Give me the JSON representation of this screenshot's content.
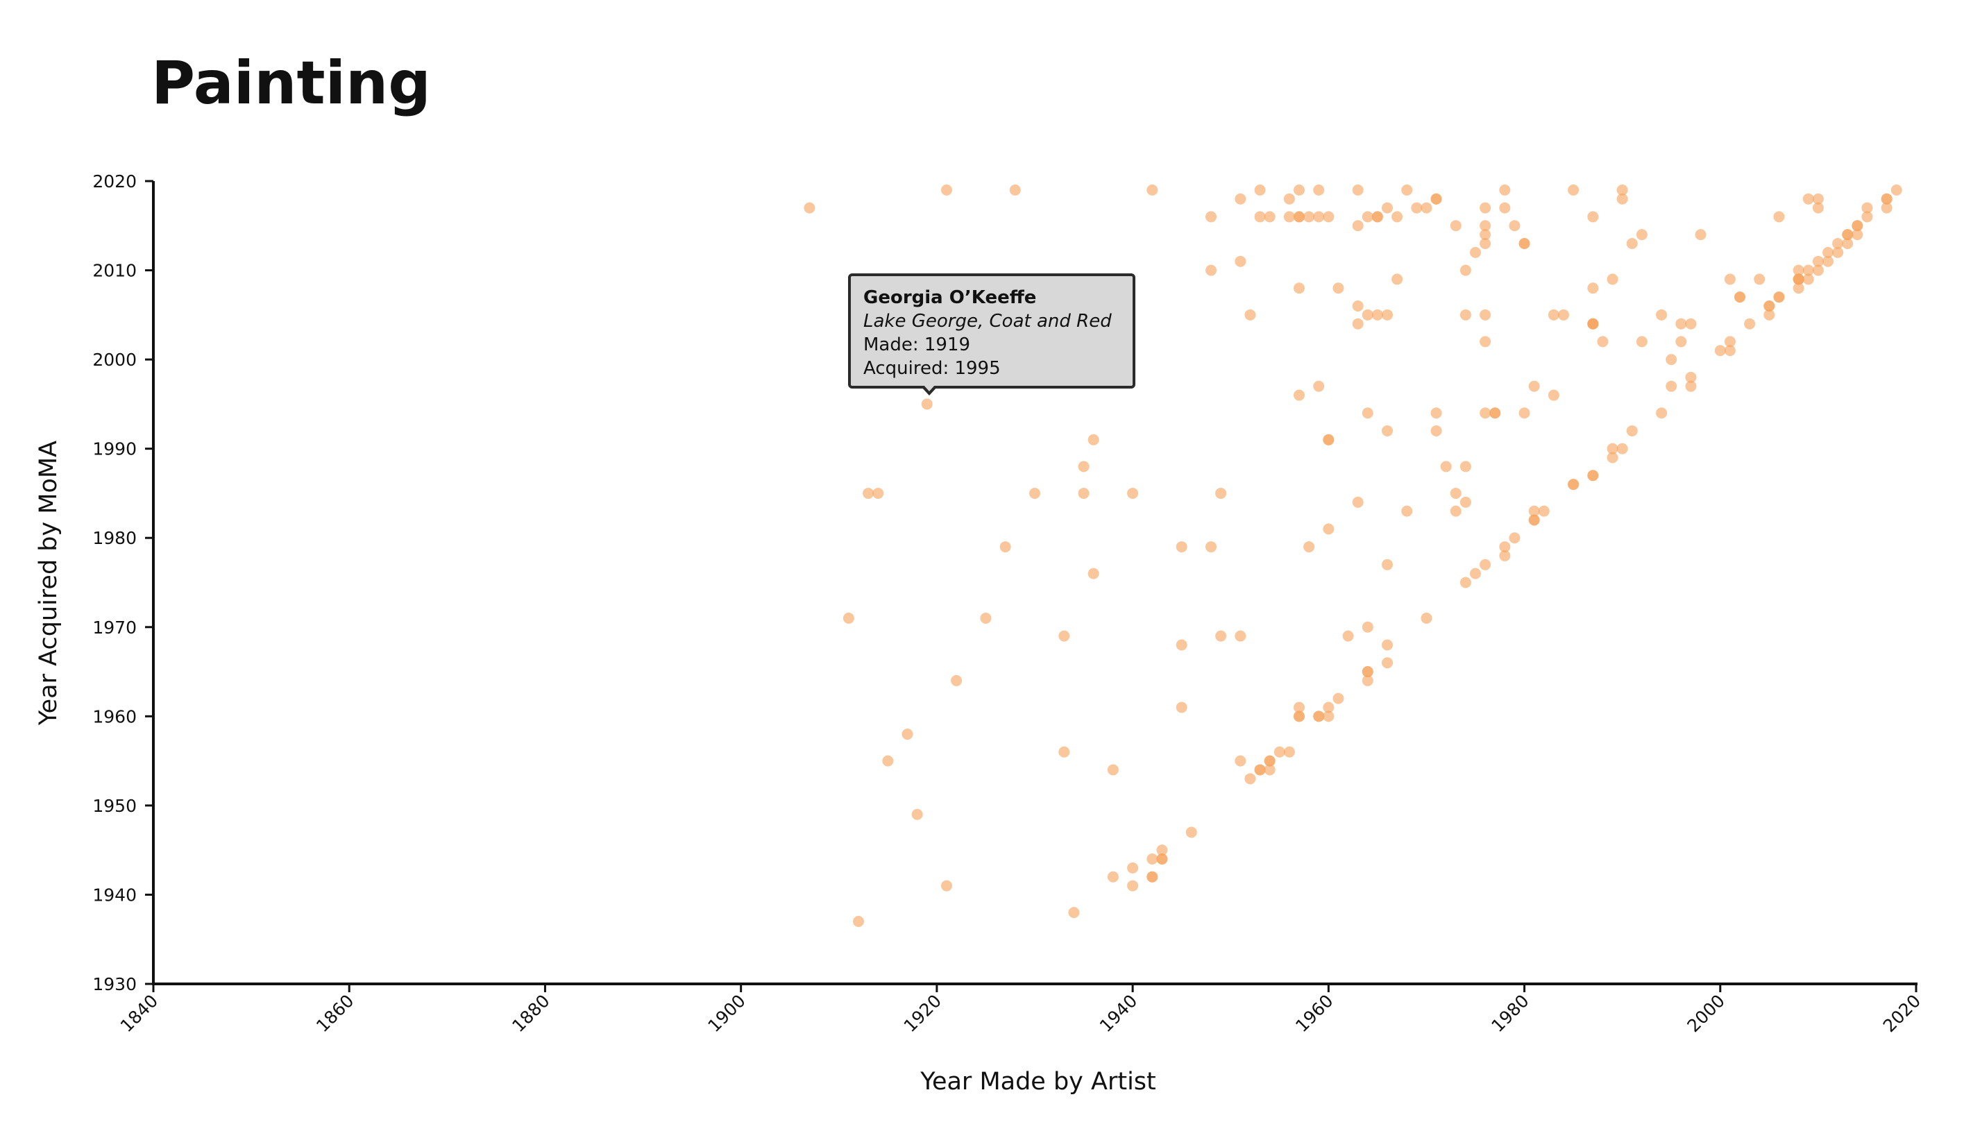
{
  "title": "Painting",
  "chart_data": {
    "type": "scatter",
    "title": "Painting",
    "xlabel": "Year Made by Artist",
    "ylabel": "Year Acquired by MoMA",
    "xlim": [
      1840,
      2020
    ],
    "ylim": [
      1930,
      2020
    ],
    "x_ticks": [
      "1840",
      "1860",
      "1880",
      "1900",
      "1920",
      "1940",
      "1960",
      "1980",
      "2000",
      "2020"
    ],
    "y_ticks": [
      "1930",
      "1940",
      "1950",
      "1960",
      "1970",
      "1980",
      "1990",
      "2000",
      "2010",
      "2020"
    ],
    "grid": false,
    "point_color": "#f7a25a",
    "points": [
      [
        1907,
        2017
      ],
      [
        1921,
        2019
      ],
      [
        1928,
        2019
      ],
      [
        1942,
        2019
      ],
      [
        1948,
        2016
      ],
      [
        1951,
        2018
      ],
      [
        1953,
        2016
      ],
      [
        1953,
        2019
      ],
      [
        1954,
        2016
      ],
      [
        1956,
        2016
      ],
      [
        1956,
        2018
      ],
      [
        1957,
        2016
      ],
      [
        1957,
        2019
      ],
      [
        1958,
        2016
      ],
      [
        1959,
        2016
      ],
      [
        1959,
        2019
      ],
      [
        1960,
        2016
      ],
      [
        1963,
        2019
      ],
      [
        1963,
        2015
      ],
      [
        1964,
        2016
      ],
      [
        1965,
        2016
      ],
      [
        1966,
        2017
      ],
      [
        1967,
        2016
      ],
      [
        1968,
        2019
      ],
      [
        1969,
        2017
      ],
      [
        1970,
        2017
      ],
      [
        1971,
        2018
      ],
      [
        1973,
        2015
      ],
      [
        1976,
        2017
      ],
      [
        1976,
        2015
      ],
      [
        1976,
        2014
      ],
      [
        1976,
        2013
      ],
      [
        1978,
        2019
      ],
      [
        1978,
        2017
      ],
      [
        1979,
        2015
      ],
      [
        1980,
        2013
      ],
      [
        1985,
        2019
      ],
      [
        1987,
        2016
      ],
      [
        1990,
        2019
      ],
      [
        1990,
        2018
      ],
      [
        1991,
        2013
      ],
      [
        1992,
        2014
      ],
      [
        1998,
        2014
      ],
      [
        1948,
        2010
      ],
      [
        1951,
        2011
      ],
      [
        1957,
        2008
      ],
      [
        1961,
        2008
      ],
      [
        1967,
        2009
      ],
      [
        1974,
        2010
      ],
      [
        1975,
        2012
      ],
      [
        1952,
        2005
      ],
      [
        1963,
        2006
      ],
      [
        1963,
        2004
      ],
      [
        1964,
        2005
      ],
      [
        1965,
        2005
      ],
      [
        1966,
        2005
      ],
      [
        1974,
        2005
      ],
      [
        1976,
        2005
      ],
      [
        1976,
        2002
      ],
      [
        1983,
        2005
      ],
      [
        1984,
        2005
      ],
      [
        1987,
        2008
      ],
      [
        1987,
        2004
      ],
      [
        1988,
        2002
      ],
      [
        1989,
        2009
      ],
      [
        1992,
        2002
      ],
      [
        1994,
        2005
      ],
      [
        1995,
        2000
      ],
      [
        1996,
        2004
      ],
      [
        1996,
        2002
      ],
      [
        1997,
        2004
      ],
      [
        2000,
        2001
      ],
      [
        2001,
        2009
      ],
      [
        2001,
        2002
      ],
      [
        2001,
        2001
      ],
      [
        2002,
        2007
      ],
      [
        2003,
        2004
      ],
      [
        2004,
        2009
      ],
      [
        2005,
        2006
      ],
      [
        2005,
        2005
      ],
      [
        2006,
        2007
      ],
      [
        2006,
        2016
      ],
      [
        2008,
        2010
      ],
      [
        2008,
        2009
      ],
      [
        2008,
        2008
      ],
      [
        2009,
        2018
      ],
      [
        2009,
        2010
      ],
      [
        2009,
        2009
      ],
      [
        2010,
        2018
      ],
      [
        2010,
        2017
      ],
      [
        2010,
        2011
      ],
      [
        2010,
        2010
      ],
      [
        2011,
        2012
      ],
      [
        2011,
        2011
      ],
      [
        2012,
        2013
      ],
      [
        2012,
        2012
      ],
      [
        2013,
        2014
      ],
      [
        2013,
        2013
      ],
      [
        2014,
        2015
      ],
      [
        2014,
        2014
      ],
      [
        2015,
        2017
      ],
      [
        2015,
        2016
      ],
      [
        2017,
        2018
      ],
      [
        2017,
        2017
      ],
      [
        2018,
        2019
      ],
      [
        1919,
        1995
      ],
      [
        1957,
        1996
      ],
      [
        1959,
        1997
      ],
      [
        1960,
        1991
      ],
      [
        1964,
        1994
      ],
      [
        1966,
        1992
      ],
      [
        1971,
        1994
      ],
      [
        1971,
        1992
      ],
      [
        1976,
        1994
      ],
      [
        1977,
        1994
      ],
      [
        1980,
        1994
      ],
      [
        1981,
        1997
      ],
      [
        1983,
        1996
      ],
      [
        1994,
        1994
      ],
      [
        1995,
        1997
      ],
      [
        1997,
        1998
      ],
      [
        1997,
        1997
      ],
      [
        1991,
        1992
      ],
      [
        1990,
        1990
      ],
      [
        1989,
        1990
      ],
      [
        1989,
        1989
      ],
      [
        1913,
        1985
      ],
      [
        1914,
        1985
      ],
      [
        1930,
        1985
      ],
      [
        1935,
        1988
      ],
      [
        1935,
        1985
      ],
      [
        1936,
        1991
      ],
      [
        1940,
        1985
      ],
      [
        1949,
        1985
      ],
      [
        1963,
        1984
      ],
      [
        1968,
        1983
      ],
      [
        1972,
        1988
      ],
      [
        1973,
        1985
      ],
      [
        1973,
        1983
      ],
      [
        1974,
        1988
      ],
      [
        1974,
        1984
      ],
      [
        1981,
        1983
      ],
      [
        1981,
        1982
      ],
      [
        1982,
        1983
      ],
      [
        1985,
        1986
      ],
      [
        1987,
        1987
      ],
      [
        1927,
        1979
      ],
      [
        1936,
        1976
      ],
      [
        1945,
        1979
      ],
      [
        1948,
        1979
      ],
      [
        1958,
        1979
      ],
      [
        1960,
        1981
      ],
      [
        1966,
        1977
      ],
      [
        1974,
        1975
      ],
      [
        1975,
        1976
      ],
      [
        1976,
        1977
      ],
      [
        1978,
        1979
      ],
      [
        1978,
        1978
      ],
      [
        1979,
        1980
      ],
      [
        1911,
        1971
      ],
      [
        1925,
        1971
      ],
      [
        1933,
        1969
      ],
      [
        1945,
        1968
      ],
      [
        1949,
        1969
      ],
      [
        1951,
        1969
      ],
      [
        1962,
        1969
      ],
      [
        1964,
        1970
      ],
      [
        1966,
        1968
      ],
      [
        1966,
        1966
      ],
      [
        1970,
        1971
      ],
      [
        1922,
        1964
      ],
      [
        1945,
        1961
      ],
      [
        1957,
        1961
      ],
      [
        1957,
        1960
      ],
      [
        1959,
        1960
      ],
      [
        1960,
        1961
      ],
      [
        1960,
        1960
      ],
      [
        1961,
        1962
      ],
      [
        1964,
        1965
      ],
      [
        1964,
        1964
      ],
      [
        1917,
        1958
      ],
      [
        1915,
        1955
      ],
      [
        1933,
        1956
      ],
      [
        1938,
        1954
      ],
      [
        1951,
        1955
      ],
      [
        1952,
        1953
      ],
      [
        1953,
        1954
      ],
      [
        1954,
        1955
      ],
      [
        1954,
        1954
      ],
      [
        1955,
        1956
      ],
      [
        1956,
        1956
      ],
      [
        1918,
        1949
      ],
      [
        1946,
        1947
      ],
      [
        1921,
        1941
      ],
      [
        1938,
        1942
      ],
      [
        1940,
        1943
      ],
      [
        1940,
        1941
      ],
      [
        1942,
        1944
      ],
      [
        1942,
        1942
      ],
      [
        1943,
        1945
      ],
      [
        1943,
        1944
      ],
      [
        1912,
        1937
      ],
      [
        1934,
        1938
      ],
      [
        1957,
        2016
      ],
      [
        1965,
        2016
      ],
      [
        1971,
        2018
      ],
      [
        1980,
        2013
      ],
      [
        1987,
        2004
      ],
      [
        1960,
        1991
      ],
      [
        1977,
        1994
      ],
      [
        1964,
        1965
      ],
      [
        1957,
        1960
      ],
      [
        1959,
        1960
      ],
      [
        1942,
        1942
      ],
      [
        1943,
        1944
      ],
      [
        1953,
        1954
      ],
      [
        1954,
        1955
      ],
      [
        1981,
        1982
      ],
      [
        1985,
        1986
      ],
      [
        2002,
        2007
      ],
      [
        2005,
        2006
      ],
      [
        2006,
        2007
      ],
      [
        2008,
        2009
      ],
      [
        2013,
        2014
      ],
      [
        2014,
        2015
      ],
      [
        2017,
        2018
      ],
      [
        2008,
        2009
      ],
      [
        1987,
        2004
      ],
      [
        1987,
        1987
      ]
    ],
    "highlight": {
      "artist": "Georgia O’Keeffe",
      "title": "Lake George, Coat and Red",
      "made": "Made: 1919",
      "acquired": "Acquired: 1995"
    }
  }
}
